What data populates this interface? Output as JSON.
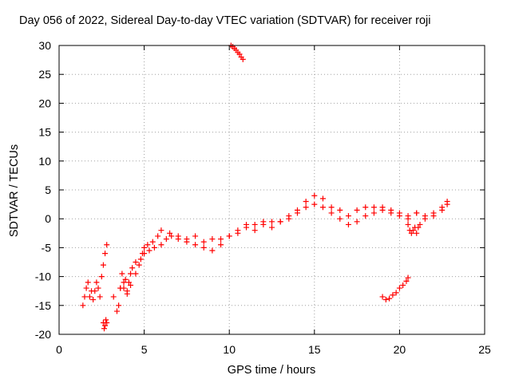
{
  "chart_data": {
    "type": "scatter",
    "title": "Day 056 of 2022, Sidereal Day-to-day VTEC variation (SDTVAR) for receiver roji",
    "xlabel": "GPS time / hours",
    "ylabel": "SDTVAR / TECUs",
    "xlim": [
      0,
      25
    ],
    "ylim": [
      -20,
      30
    ],
    "xticks": [
      "0",
      "5",
      "10",
      "15",
      "20",
      "25"
    ],
    "yticks": [
      "-20",
      "-15",
      "-10",
      "-5",
      "0",
      "5",
      "10",
      "15",
      "20",
      "25",
      "30"
    ],
    "grid": true,
    "legend": "none",
    "marker": "plus",
    "color": "#ff0000",
    "series": [
      {
        "x": [
          1.4,
          1.5,
          1.6,
          1.7,
          1.8,
          1.9,
          2.0,
          2.1,
          2.2,
          2.3,
          2.4,
          2.5,
          2.6,
          2.7,
          2.8
        ],
        "y": [
          -15.0,
          -13.5,
          -12.0,
          -11.0,
          -13.5,
          -12.5,
          -14.0,
          -12.5,
          -11.0,
          -12.0,
          -13.5,
          -10.0,
          -8.0,
          -6.0,
          -4.5
        ]
      },
      {
        "x": [
          2.6,
          2.65,
          2.7,
          2.75,
          2.8
        ],
        "y": [
          -18.0,
          -19.0,
          -18.5,
          -17.5,
          -18.0
        ]
      },
      {
        "x": [
          3.2,
          3.4,
          3.5,
          3.6,
          3.7,
          3.8,
          3.9,
          4.0,
          4.1,
          4.2,
          4.3,
          4.5,
          4.7,
          4.9,
          5.0,
          5.2,
          5.5,
          5.8,
          6.0,
          6.5,
          7.0,
          7.5,
          8.0,
          8.5,
          9.0,
          9.5,
          10.0,
          10.5,
          11.0,
          11.5,
          12.0,
          12.5,
          13.0,
          13.5,
          14.0,
          14.5,
          15.0,
          15.5,
          16.0,
          16.5,
          17.0,
          17.5,
          18.0,
          18.5,
          19.0,
          19.5,
          20.0,
          20.5,
          21.0,
          21.5,
          22.0,
          22.5,
          22.8
        ],
        "y": [
          -13.5,
          -16.0,
          -15.0,
          -12.0,
          -9.5,
          -12.0,
          -10.5,
          -13.0,
          -11.0,
          -9.5,
          -8.5,
          -7.5,
          -8.0,
          -6.0,
          -5.0,
          -4.5,
          -4.0,
          -3.0,
          -2.0,
          -2.5,
          -3.0,
          -3.5,
          -3.0,
          -4.0,
          -3.5,
          -3.5,
          -3.0,
          -2.0,
          -1.0,
          -1.0,
          -0.5,
          -0.5,
          -0.5,
          0.0,
          1.5,
          3.0,
          4.0,
          3.5,
          2.0,
          1.5,
          0.5,
          1.5,
          2.0,
          2.0,
          2.0,
          1.5,
          1.0,
          0.5,
          1.0,
          0.5,
          1.0,
          2.0,
          3.0
        ]
      },
      {
        "x": [
          3.6,
          3.8,
          4.0,
          4.2,
          4.5,
          4.8,
          5.0,
          5.3,
          5.6,
          6.0,
          6.3,
          6.6,
          7.0,
          7.5,
          8.0,
          8.5,
          9.0,
          9.5,
          10.0,
          10.5,
          11.0,
          11.5,
          12.0,
          12.5,
          13.0,
          13.5,
          14.0,
          14.5,
          15.0,
          15.5,
          16.0,
          16.5,
          17.0,
          17.5,
          18.0,
          18.5,
          19.0,
          19.5,
          20.0,
          20.5,
          21.0,
          21.5,
          22.0,
          22.5,
          22.8
        ],
        "y": [
          -12.0,
          -11.0,
          -12.5,
          -11.5,
          -9.5,
          -7.0,
          -6.0,
          -5.5,
          -5.0,
          -4.5,
          -3.5,
          -3.0,
          -3.5,
          -4.0,
          -4.5,
          -5.0,
          -5.5,
          -4.5,
          -3.0,
          -2.5,
          -1.5,
          -2.0,
          -1.0,
          -1.5,
          -0.5,
          0.5,
          1.0,
          2.0,
          2.5,
          2.0,
          1.0,
          0.0,
          -1.0,
          -0.5,
          0.5,
          1.0,
          1.5,
          1.0,
          0.5,
          0.0,
          1.0,
          0.0,
          0.5,
          1.5,
          2.5
        ]
      },
      {
        "x": [
          10.1,
          10.2,
          10.3,
          10.4,
          10.5,
          10.6,
          10.7,
          10.8
        ],
        "y": [
          30.0,
          29.8,
          29.5,
          29.2,
          28.8,
          28.5,
          28.0,
          27.6
        ]
      },
      {
        "x": [
          20.5,
          20.6,
          20.7,
          20.8,
          20.9,
          21.0,
          21.1,
          21.2
        ],
        "y": [
          -1.0,
          -2.0,
          -2.5,
          -2.0,
          -1.5,
          -2.5,
          -1.5,
          -1.0
        ]
      },
      {
        "x": [
          19.0,
          19.2,
          19.4,
          19.6,
          19.8,
          20.0,
          20.2,
          20.4,
          20.5
        ],
        "y": [
          -13.5,
          -14.0,
          -13.8,
          -13.2,
          -12.8,
          -12.0,
          -11.5,
          -10.8,
          -10.2
        ]
      }
    ]
  }
}
